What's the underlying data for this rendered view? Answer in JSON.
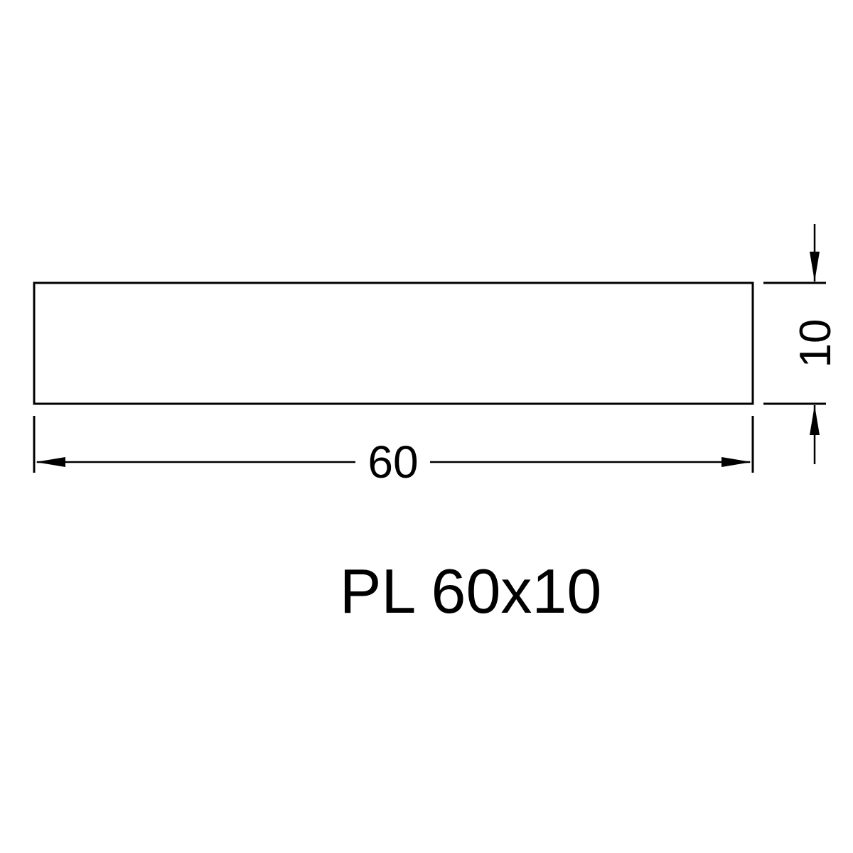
{
  "drawing": {
    "width_dimension": "60",
    "height_dimension": "10",
    "caption": "PL 60x10",
    "line_color": "#000000",
    "background_color": "#ffffff"
  }
}
